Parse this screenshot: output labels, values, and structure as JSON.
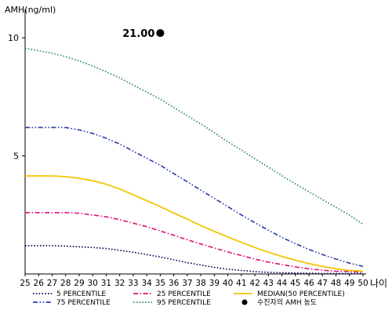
{
  "chart_data": {
    "type": "line",
    "ylabel": "AMH(ng/ml)",
    "xlabel": "나이",
    "x": [
      25,
      26,
      27,
      28,
      29,
      30,
      31,
      32,
      33,
      34,
      35,
      36,
      37,
      38,
      39,
      40,
      41,
      42,
      43,
      44,
      45,
      46,
      47,
      48,
      49,
      50
    ],
    "xlim": [
      25,
      50
    ],
    "ylim": [
      0,
      11
    ],
    "yticks": [
      5,
      10
    ],
    "grid": false,
    "legend_position": "bottom",
    "series": [
      {
        "name": "5 PERCENTILE",
        "color": "#00005a",
        "dash": "dotted",
        "values": [
          1.2,
          1.2,
          1.2,
          1.18,
          1.15,
          1.12,
          1.08,
          1.0,
          0.92,
          0.82,
          0.72,
          0.6,
          0.48,
          0.38,
          0.28,
          0.2,
          0.15,
          0.1,
          0.07,
          0.05,
          0.04,
          0.03,
          0.02,
          0.02,
          0.02,
          0.02
        ]
      },
      {
        "name": "25 PERCENTILE",
        "color": "#e0117a",
        "dash": "dashdot",
        "values": [
          2.6,
          2.6,
          2.6,
          2.6,
          2.57,
          2.5,
          2.42,
          2.3,
          2.15,
          2.0,
          1.82,
          1.64,
          1.45,
          1.27,
          1.1,
          0.93,
          0.78,
          0.63,
          0.5,
          0.4,
          0.3,
          0.22,
          0.16,
          0.12,
          0.1,
          0.08
        ]
      },
      {
        "name": "MEDIAN(50 PERCENTILE)",
        "color": "#f2c500",
        "dash": "solid",
        "values": [
          4.15,
          4.15,
          4.15,
          4.12,
          4.05,
          3.95,
          3.8,
          3.6,
          3.35,
          3.1,
          2.85,
          2.58,
          2.32,
          2.05,
          1.8,
          1.57,
          1.34,
          1.12,
          0.92,
          0.74,
          0.58,
          0.44,
          0.32,
          0.22,
          0.15,
          0.12
        ]
      },
      {
        "name": "75 PERCENTILE",
        "color": "#2a3aa8",
        "dash": "dashdotdot",
        "values": [
          6.2,
          6.2,
          6.2,
          6.2,
          6.1,
          5.95,
          5.75,
          5.5,
          5.2,
          4.9,
          4.6,
          4.25,
          3.9,
          3.55,
          3.2,
          2.85,
          2.5,
          2.17,
          1.85,
          1.55,
          1.28,
          1.04,
          0.82,
          0.63,
          0.46,
          0.32
        ]
      },
      {
        "name": "95 PERCENTILE",
        "color": "#2e8b57",
        "dash": "dotted",
        "values": [
          9.55,
          9.45,
          9.35,
          9.2,
          9.02,
          8.8,
          8.56,
          8.3,
          8.0,
          7.7,
          7.4,
          7.05,
          6.7,
          6.35,
          5.98,
          5.6,
          5.25,
          4.88,
          4.52,
          4.16,
          3.81,
          3.48,
          3.15,
          2.82,
          2.5,
          2.1
        ]
      }
    ],
    "marker": {
      "name": "수진자의 AMH 농도",
      "x": 35,
      "y": 10.2,
      "label": "21.00",
      "color": "#000000"
    }
  }
}
